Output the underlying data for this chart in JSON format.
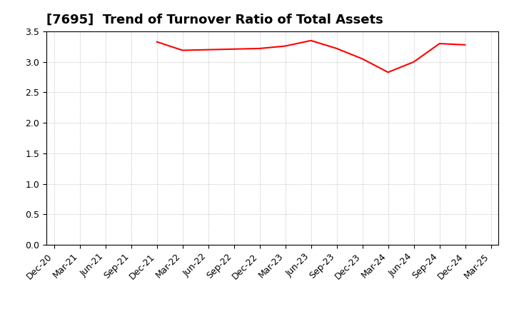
{
  "title": "[7695]  Trend of Turnover Ratio of Total Assets",
  "line_color": "#FF0000",
  "background_color": "#FFFFFF",
  "grid_color": "#AAAAAA",
  "ylim": [
    0.0,
    3.5
  ],
  "yticks": [
    0.0,
    0.5,
    1.0,
    1.5,
    2.0,
    2.5,
    3.0,
    3.5
  ],
  "x_labels": [
    "Dec-20",
    "Mar-21",
    "Jun-21",
    "Sep-21",
    "Dec-21",
    "Mar-22",
    "Jun-22",
    "Sep-22",
    "Dec-22",
    "Mar-23",
    "Jun-23",
    "Sep-23",
    "Dec-23",
    "Mar-24",
    "Jun-24",
    "Sep-24",
    "Dec-24",
    "Mar-25"
  ],
  "x_values": [
    0,
    1,
    2,
    3,
    4,
    5,
    6,
    7,
    8,
    9,
    10,
    11,
    12,
    13,
    14,
    15,
    16,
    17
  ],
  "data_x": [
    4,
    5,
    6,
    7,
    8,
    9,
    10,
    11,
    12,
    13,
    14,
    15,
    16
  ],
  "data_y": [
    3.33,
    3.19,
    3.2,
    3.21,
    3.22,
    3.26,
    3.35,
    3.22,
    3.05,
    2.83,
    3.0,
    3.3,
    3.28
  ],
  "title_fontsize": 13,
  "tick_fontsize": 9,
  "line_width": 1.5
}
